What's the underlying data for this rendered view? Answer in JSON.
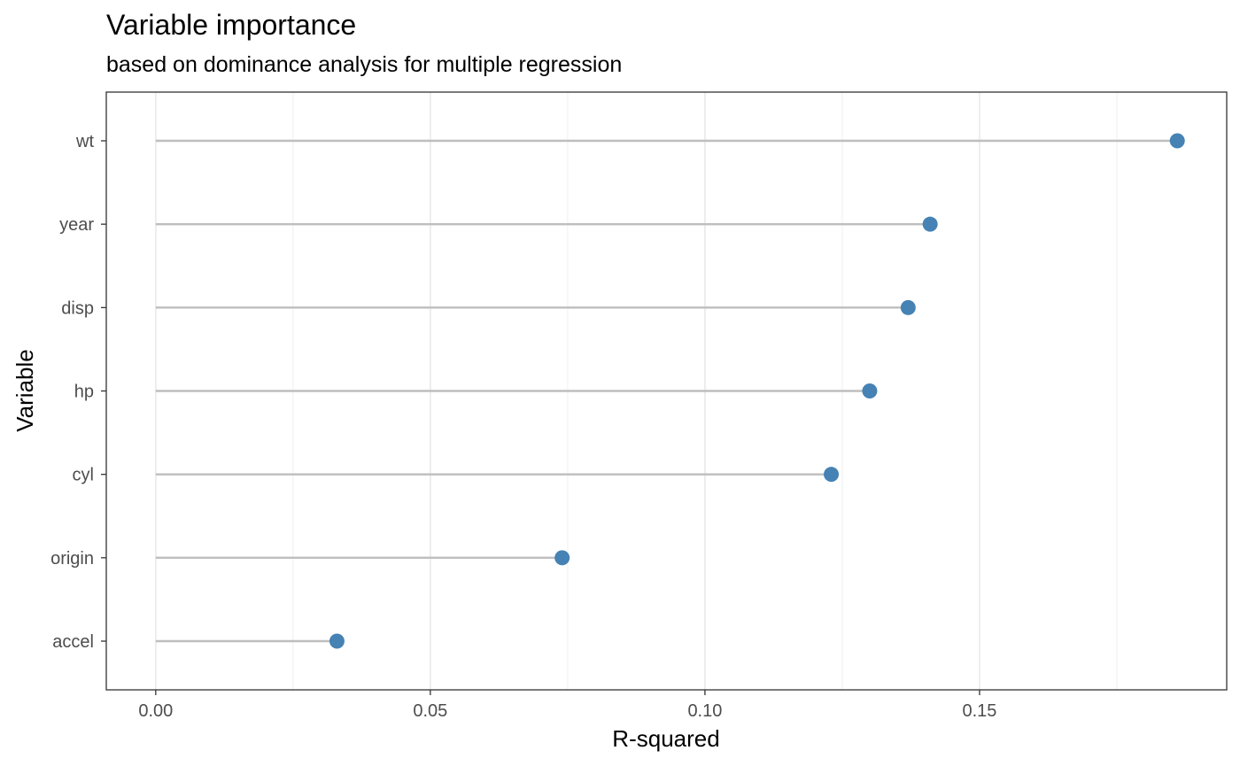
{
  "chart_data": {
    "type": "scatter",
    "subtype": "lollipop",
    "title": "Variable importance",
    "subtitle": "based on dominance analysis for multiple regression",
    "xlabel": "R-squared",
    "ylabel": "Variable",
    "xlim": [
      -0.009,
      0.195
    ],
    "x_ticks": [
      0.0,
      0.05,
      0.1,
      0.15
    ],
    "x_tick_labels": [
      "0.00",
      "0.05",
      "0.10",
      "0.15"
    ],
    "categories": [
      "wt",
      "year",
      "disp",
      "hp",
      "cyl",
      "origin",
      "accel"
    ],
    "values": [
      0.186,
      0.141,
      0.137,
      0.13,
      0.123,
      0.074,
      0.033
    ],
    "grid": true,
    "legend": "none",
    "colors": {
      "point": "#4682b4",
      "segment": "#bebebe",
      "grid_major": "#ebebeb",
      "grid_minor": "#f3f3f3",
      "panel_border": "#333333",
      "tick_label": "#4d4d4d"
    }
  }
}
